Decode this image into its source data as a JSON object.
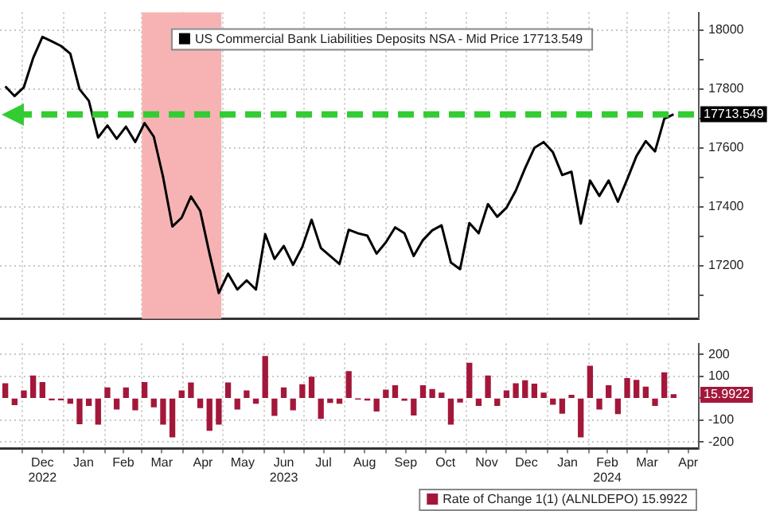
{
  "chart_data": [
    {
      "type": "line",
      "x": [
        "2022-11-18",
        "2022-11-25",
        "2022-12-02",
        "2022-12-09",
        "2022-12-16",
        "2022-12-23",
        "2022-12-30",
        "2023-01-06",
        "2023-01-13",
        "2023-01-20",
        "2023-01-27",
        "2023-02-03",
        "2023-02-10",
        "2023-02-17",
        "2023-02-24",
        "2023-03-03",
        "2023-03-10",
        "2023-03-17",
        "2023-03-24",
        "2023-03-31",
        "2023-04-07",
        "2023-04-14",
        "2023-04-21",
        "2023-04-28",
        "2023-05-05",
        "2023-05-12",
        "2023-05-19",
        "2023-05-26",
        "2023-06-02",
        "2023-06-09",
        "2023-06-16",
        "2023-06-23",
        "2023-06-30",
        "2023-07-07",
        "2023-07-14",
        "2023-07-21",
        "2023-07-28",
        "2023-08-04",
        "2023-08-11",
        "2023-08-18",
        "2023-08-25",
        "2023-09-01",
        "2023-09-08",
        "2023-09-15",
        "2023-09-22",
        "2023-09-29",
        "2023-10-06",
        "2023-10-13",
        "2023-10-20",
        "2023-10-27",
        "2023-11-03",
        "2023-11-10",
        "2023-11-17",
        "2023-11-24",
        "2023-12-01",
        "2023-12-08",
        "2023-12-15",
        "2023-12-22",
        "2023-12-29",
        "2024-01-05",
        "2024-01-12",
        "2024-01-19",
        "2024-01-26",
        "2024-02-02",
        "2024-02-09",
        "2024-02-16",
        "2024-02-23",
        "2024-03-01",
        "2024-03-08",
        "2024-03-15",
        "2024-03-22",
        "2024-03-29",
        "2024-04-05"
      ],
      "series": [
        {
          "name": "US Commercial Bank Liabilities Deposits NSA - Mid Price 17713.549",
          "color": "#000000",
          "values": [
            17809,
            17776,
            17806,
            17905,
            17977,
            17962,
            17946,
            17920,
            17799,
            17760,
            17635,
            17676,
            17631,
            17672,
            17620,
            17684,
            17638,
            17501,
            17333,
            17363,
            17435,
            17386,
            17241,
            17107,
            17173,
            17119,
            17150,
            17119,
            17307,
            17223,
            17267,
            17203,
            17264,
            17356,
            17260,
            17233,
            17206,
            17322,
            17310,
            17302,
            17241,
            17279,
            17330,
            17310,
            17233,
            17287,
            17320,
            17337,
            17211,
            17188,
            17345,
            17310,
            17409,
            17366,
            17397,
            17455,
            17531,
            17600,
            17620,
            17585,
            17508,
            17519,
            17343,
            17489,
            17437,
            17489,
            17417,
            17493,
            17572,
            17623,
            17588,
            17699,
            17714
          ]
        }
      ],
      "xlim": [
        "2022-11-14",
        "2024-04-24"
      ],
      "xticks": [
        {
          "value": "2022-12-01",
          "label": null
        },
        {
          "value": "2023-01-01",
          "label": null
        },
        {
          "value": "2023-02-01",
          "label": null
        },
        {
          "value": "2023-03-01",
          "label": null
        },
        {
          "value": "2023-04-01",
          "label": null
        },
        {
          "value": "2023-05-01",
          "label": null
        },
        {
          "value": "2023-06-01",
          "label": null
        },
        {
          "value": "2023-07-01",
          "label": null
        },
        {
          "value": "2023-08-01",
          "label": null
        },
        {
          "value": "2023-09-01",
          "label": null
        },
        {
          "value": "2023-10-01",
          "label": null
        },
        {
          "value": "2023-11-01",
          "label": null
        },
        {
          "value": "2023-12-01",
          "label": null
        },
        {
          "value": "2024-01-01",
          "label": null
        },
        {
          "value": "2024-02-01",
          "label": null
        },
        {
          "value": "2024-03-01",
          "label": null
        },
        {
          "value": "2024-04-01",
          "label": null
        }
      ],
      "ylim": [
        17020,
        18060
      ],
      "yticks": [
        {
          "value": 17100,
          "label": null
        },
        17200,
        {
          "value": 17300,
          "label": null
        },
        17400,
        {
          "value": 17500,
          "label": null
        },
        17600,
        {
          "value": 17700,
          "label": null
        },
        17800,
        {
          "value": 17900,
          "label": null
        },
        18000
      ],
      "tick_labels": "y",
      "grid": true,
      "legend": "top",
      "ref_lines": [
        {
          "axis": "y",
          "value": 17713.549,
          "color": "#33cc33",
          "line_style": "dashed"
        }
      ],
      "bands": [
        {
          "axis": "x",
          "from": "2023-03-01",
          "to": "2023-04-30",
          "color": "#f7b3b3"
        }
      ],
      "annotations": [
        "17713.549"
      ]
    },
    {
      "type": "bar",
      "x": [
        "2022-11-18",
        "2022-11-25",
        "2022-12-02",
        "2022-12-09",
        "2022-12-16",
        "2022-12-23",
        "2022-12-30",
        "2023-01-06",
        "2023-01-13",
        "2023-01-20",
        "2023-01-27",
        "2023-02-03",
        "2023-02-10",
        "2023-02-17",
        "2023-02-24",
        "2023-03-03",
        "2023-03-10",
        "2023-03-17",
        "2023-03-24",
        "2023-03-31",
        "2023-04-07",
        "2023-04-14",
        "2023-04-21",
        "2023-04-28",
        "2023-05-05",
        "2023-05-12",
        "2023-05-19",
        "2023-05-26",
        "2023-06-02",
        "2023-06-09",
        "2023-06-16",
        "2023-06-23",
        "2023-06-30",
        "2023-07-07",
        "2023-07-14",
        "2023-07-21",
        "2023-07-28",
        "2023-08-04",
        "2023-08-11",
        "2023-08-18",
        "2023-08-25",
        "2023-09-01",
        "2023-09-08",
        "2023-09-15",
        "2023-09-22",
        "2023-09-29",
        "2023-10-06",
        "2023-10-13",
        "2023-10-20",
        "2023-10-27",
        "2023-11-03",
        "2023-11-10",
        "2023-11-17",
        "2023-11-24",
        "2023-12-01",
        "2023-12-08",
        "2023-12-15",
        "2023-12-22",
        "2023-12-29",
        "2024-01-05",
        "2024-01-12",
        "2024-01-19",
        "2024-01-26",
        "2024-02-02",
        "2024-02-09",
        "2024-02-16",
        "2024-02-23",
        "2024-03-01",
        "2024-03-08",
        "2024-03-15",
        "2024-03-22",
        "2024-03-29",
        "2024-04-05"
      ],
      "series": [
        {
          "name": "Rate of Change 1(1) (ALNLDEPO) 15.9922",
          "color": "#a3183a",
          "values": [
            66,
            -29,
            33,
            102,
            72,
            -7,
            -7,
            -23,
            -116,
            -33,
            -118,
            47,
            -49,
            47,
            -53,
            72,
            -39,
            -118,
            -176,
            33,
            70,
            -43,
            -146,
            -118,
            70,
            -49,
            33,
            -23,
            191,
            -78,
            47,
            -53,
            62,
            96,
            -92,
            -19,
            -23,
            122,
            -3,
            -8,
            -58,
            37,
            57,
            -9,
            -76,
            57,
            40,
            23,
            -118,
            -17,
            160,
            -33,
            102,
            -33,
            33,
            66,
            80,
            64,
            23,
            -27,
            -68,
            13,
            -176,
            146,
            -49,
            57,
            -70,
            90,
            82,
            51,
            -33,
            116,
            16
          ]
        }
      ],
      "xlim": [
        "2022-11-14",
        "2024-04-24"
      ],
      "xticks": [
        {
          "value": "2022-12-01",
          "label": null
        },
        {
          "value": "2022-12-16",
          "label": "Dec\n2022"
        },
        {
          "value": "2023-01-01",
          "label": null
        },
        {
          "value": "2023-01-16",
          "label": "Jan"
        },
        {
          "value": "2023-02-01",
          "label": null
        },
        {
          "value": "2023-02-15",
          "label": "Feb"
        },
        {
          "value": "2023-03-01",
          "label": null
        },
        {
          "value": "2023-03-16",
          "label": "Mar"
        },
        {
          "value": "2023-04-01",
          "label": null
        },
        {
          "value": "2023-04-16",
          "label": "Apr"
        },
        {
          "value": "2023-05-01",
          "label": null
        },
        {
          "value": "2023-05-16",
          "label": "May"
        },
        {
          "value": "2023-06-01",
          "label": null
        },
        {
          "value": "2023-06-16",
          "label": "Jun\n2023"
        },
        {
          "value": "2023-07-01",
          "label": null
        },
        {
          "value": "2023-07-16",
          "label": "Jul"
        },
        {
          "value": "2023-08-01",
          "label": null
        },
        {
          "value": "2023-08-16",
          "label": "Aug"
        },
        {
          "value": "2023-09-01",
          "label": null
        },
        {
          "value": "2023-09-16",
          "label": "Sep"
        },
        {
          "value": "2023-10-01",
          "label": null
        },
        {
          "value": "2023-10-16",
          "label": "Oct"
        },
        {
          "value": "2023-11-01",
          "label": null
        },
        {
          "value": "2023-11-16",
          "label": "Nov"
        },
        {
          "value": "2023-12-01",
          "label": null
        },
        {
          "value": "2023-12-16",
          "label": "Dec"
        },
        {
          "value": "2024-01-01",
          "label": null
        },
        {
          "value": "2024-01-16",
          "label": "Jan"
        },
        {
          "value": "2024-02-01",
          "label": null
        },
        {
          "value": "2024-02-15",
          "label": "Feb\n2024"
        },
        {
          "value": "2024-03-01",
          "label": null
        },
        {
          "value": "2024-03-16",
          "label": "Mar"
        },
        {
          "value": "2024-04-01",
          "label": null
        },
        {
          "value": "2024-04-16",
          "label": "Apr"
        }
      ],
      "ylim": [
        -230,
        250
      ],
      "yticks": [
        -200,
        -100,
        {
          "value": 0,
          "label": null
        },
        100,
        200
      ],
      "grid": true,
      "legend": "bottom right",
      "annotations": [
        "15.9922"
      ]
    }
  ]
}
